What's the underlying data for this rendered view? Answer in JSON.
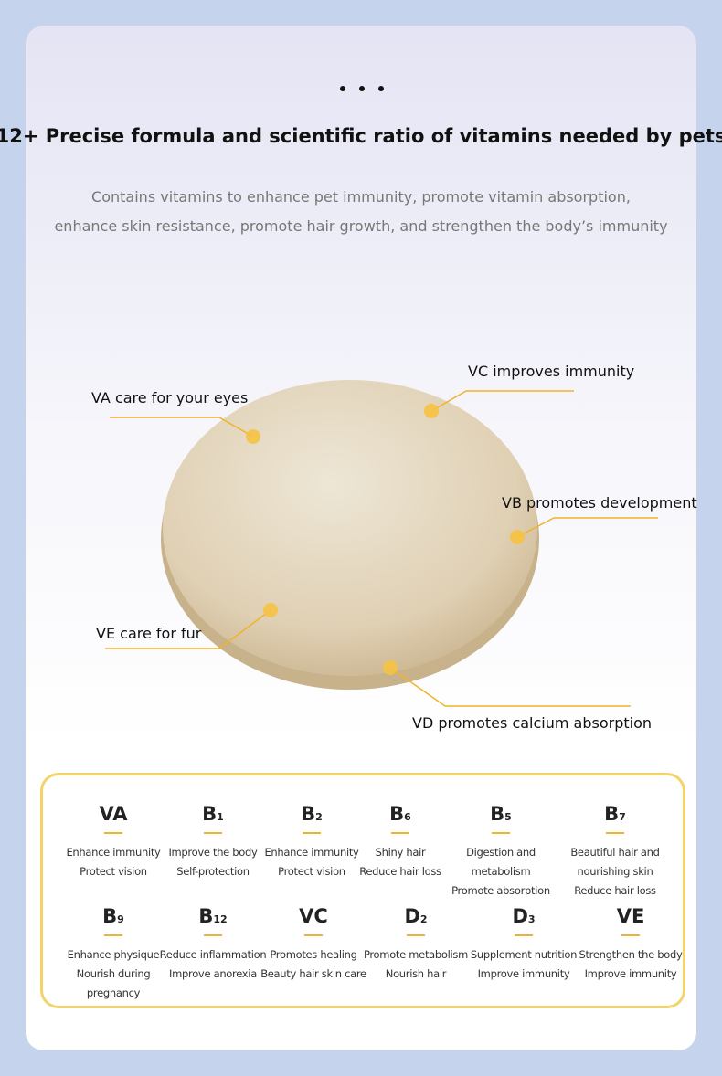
{
  "header": {
    "title": "12+ Precise formula and scientific ratio of vitamins needed by pets",
    "subtitle": [
      "Contains vitamins to enhance pet immunity, promote vitamin absorption,",
      "enhance skin resistance, promote hair growth, and strengthen the body’s immunity"
    ]
  },
  "callouts": [
    "VA care for your eyes",
    "VC improves immunity",
    "VB promotes development",
    "VE care for fur",
    "VD promotes calcium absorption"
  ],
  "vitamins": [
    {
      "name": "VA",
      "lines": [
        "Enhance immunity",
        "Protect vision"
      ]
    },
    {
      "name": "B",
      "sub": "1",
      "lines": [
        "Improve the body",
        "Self-protection"
      ]
    },
    {
      "name": "B",
      "sub": "2",
      "lines": [
        "Enhance immunity",
        "Protect vision"
      ]
    },
    {
      "name": "B",
      "sub": "6",
      "lines": [
        "Shiny hair",
        "Reduce hair loss"
      ]
    },
    {
      "name": "B",
      "sub": "5",
      "lines": [
        "Digestion and metabolism",
        "Promote absorption"
      ]
    },
    {
      "name": "B",
      "sub": "7",
      "lines": [
        "Beautiful hair and",
        "nourishing skin",
        "Reduce hair loss"
      ]
    },
    {
      "name": "B",
      "sub": "9",
      "lines": [
        "Enhance physique",
        "Nourish during",
        "pregnancy"
      ]
    },
    {
      "name": "B",
      "sub": "12",
      "lines": [
        "Reduce inflammation",
        "Improve anorexia"
      ]
    },
    {
      "name": "VC",
      "lines": [
        "Promotes healing",
        "Beauty hair skin care"
      ]
    },
    {
      "name": "D",
      "sub": "2",
      "lines": [
        "Promote metabolism",
        "Nourish hair"
      ]
    },
    {
      "name": "D",
      "sub": "3",
      "lines": [
        "Supplement nutrition",
        "Improve immunity"
      ]
    },
    {
      "name": "VE",
      "lines": [
        "Strengthen the body",
        "Improve immunity"
      ]
    }
  ]
}
